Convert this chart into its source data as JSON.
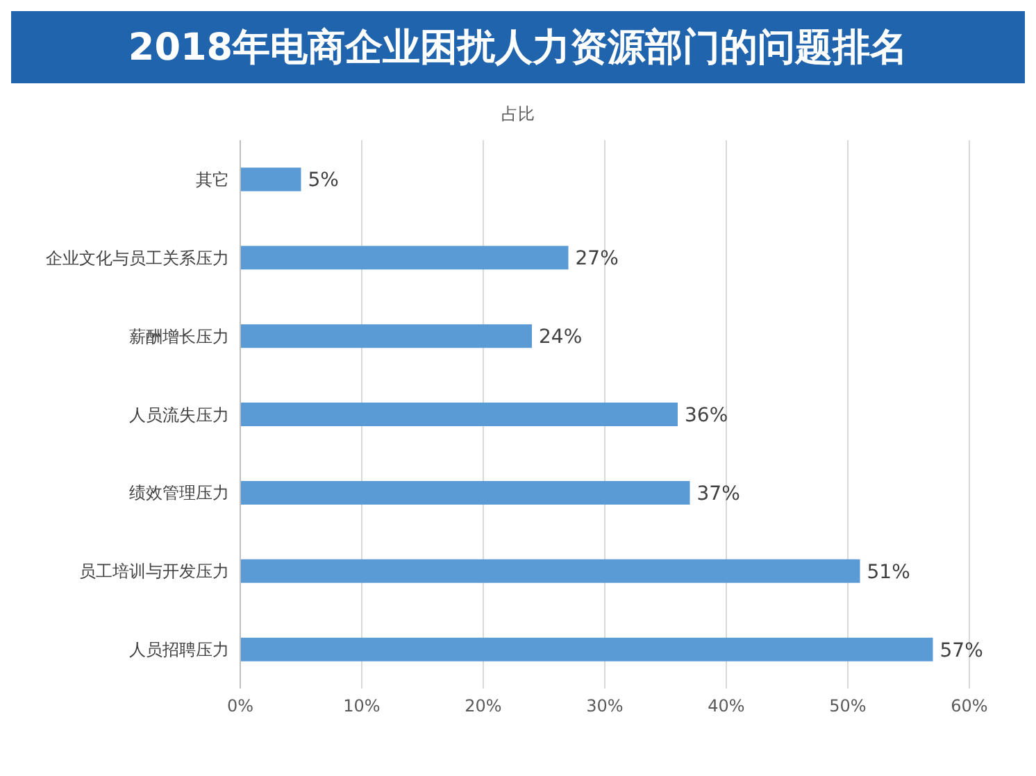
{
  "chart_data": {
    "type": "bar",
    "orientation": "horizontal",
    "title": "2018年电商企业困扰人力资源部门的问题排名",
    "subtitle": "占比",
    "categories": [
      "其它",
      "企业文化与员工关系压力",
      "薪酬增长压力",
      "人员流失压力",
      "绩效管理压力",
      "员工培训与开发压力",
      "人员招聘压力"
    ],
    "values": [
      5,
      27,
      24,
      36,
      37,
      51,
      57
    ],
    "value_labels": [
      "5%",
      "27%",
      "24%",
      "36%",
      "37%",
      "51%",
      "57%"
    ],
    "color": "#5b9bd5",
    "xlim": [
      0,
      60
    ],
    "xticks": [
      {
        "value": 0,
        "label": "0%"
      },
      {
        "value": 10,
        "label": "10%"
      },
      {
        "value": 20,
        "label": "20%"
      },
      {
        "value": 30,
        "label": "30%"
      },
      {
        "value": 40,
        "label": "40%"
      },
      {
        "value": 50,
        "label": "50%"
      },
      {
        "value": 60,
        "label": "60%"
      }
    ],
    "grid": "x"
  }
}
